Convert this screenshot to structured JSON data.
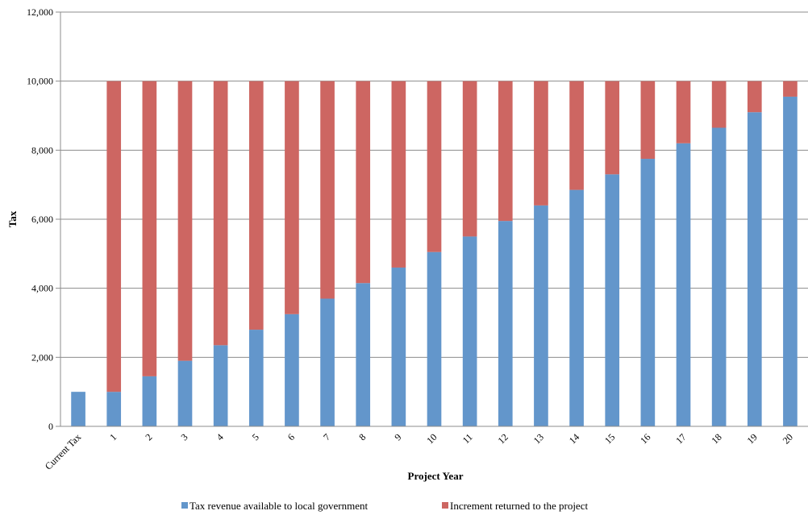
{
  "chart_data": {
    "type": "bar",
    "stacked": true,
    "categories": [
      "Current Tax",
      "1",
      "2",
      "3",
      "4",
      "5",
      "6",
      "7",
      "8",
      "9",
      "10",
      "11",
      "12",
      "13",
      "14",
      "15",
      "16",
      "17",
      "18",
      "19",
      "20"
    ],
    "series": [
      {
        "name": "Tax revenue available to local government",
        "color": "#6396cb",
        "values": [
          1000,
          1000,
          1450,
          1900,
          2350,
          2800,
          3250,
          3700,
          4150,
          4600,
          5050,
          5500,
          5950,
          6400,
          6850,
          7300,
          7750,
          8200,
          8650,
          9100,
          9550
        ]
      },
      {
        "name": "Increment returned to the project",
        "color": "#cd6662",
        "values": [
          0,
          9000,
          8550,
          8100,
          7650,
          7200,
          6750,
          6300,
          5850,
          5400,
          4950,
          4500,
          4050,
          3600,
          3150,
          2700,
          2250,
          1800,
          1350,
          900,
          450
        ]
      }
    ],
    "xlabel": "Project Year",
    "ylabel": "Tax",
    "ylim": [
      0,
      12000
    ],
    "yticks": [
      0,
      2000,
      4000,
      6000,
      8000,
      10000,
      12000
    ],
    "ytick_labels": [
      "0",
      "2,000",
      "4,000",
      "6,000",
      "8,000",
      "10,000",
      "12,000"
    ],
    "grid": true,
    "legend_position": "bottom"
  }
}
